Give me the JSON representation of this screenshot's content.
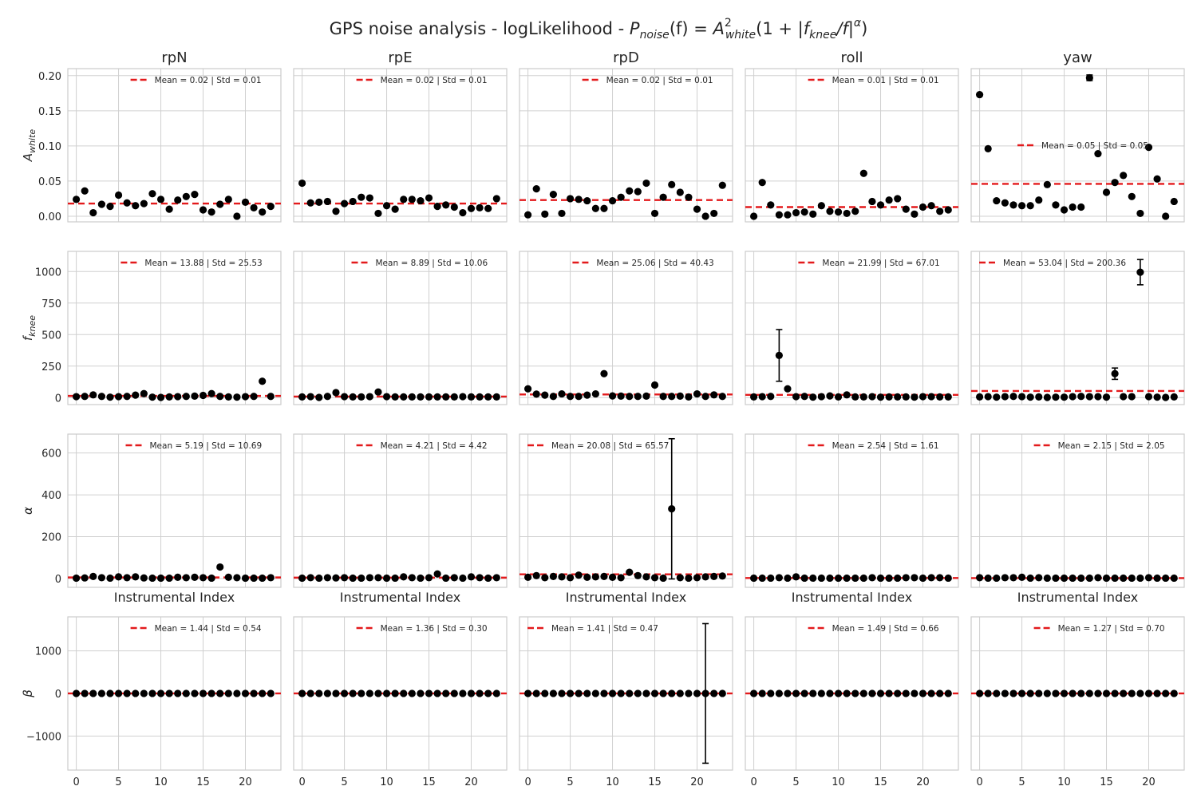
{
  "figure": {
    "title": "GPS noise analysis - logLikelihood - P_noise(f) = A²_white(1 + |f_knee/f|^α)",
    "title_parts": {
      "prefix": "GPS noise analysis - logLikelihood - ",
      "P": "P",
      "noise_sub": "noise",
      "f_arg": "(f) = ",
      "A": "A",
      "sq": "2",
      "white_sub": "white",
      "paren_open": "(1 + |",
      "f": "f",
      "knee_sub": "knee",
      "slash_f": "/f|",
      "alpha_sup": "α",
      "paren_close": ")"
    },
    "colors": {
      "points": "#000000",
      "mean_line": "#e31a1c",
      "grid": "#d0d0d0",
      "frame": "#cccccc",
      "text": "#262626"
    },
    "grid": true
  },
  "chart_data": {
    "type": "scatter",
    "columns": [
      "rpN",
      "rpE",
      "rpD",
      "roll",
      "yaw"
    ],
    "x": [
      0,
      1,
      2,
      3,
      4,
      5,
      6,
      7,
      8,
      9,
      10,
      11,
      12,
      13,
      14,
      15,
      16,
      17,
      18,
      19,
      20,
      21,
      22,
      23
    ],
    "xticks": [
      0,
      5,
      10,
      15,
      20
    ],
    "xlim": [
      -1,
      24.2
    ],
    "xlabel": "Instrumental Index",
    "rows": [
      {
        "ylabel": "A",
        "ylabel_sub": "white",
        "ylim": [
          -0.008,
          0.21
        ],
        "yticks": [
          "0.00",
          "0.05",
          "0.10",
          "0.15",
          "0.20"
        ],
        "ytick_values": [
          0,
          0.05,
          0.1,
          0.15,
          0.2
        ],
        "panels": [
          {
            "mean_label": "Mean = 0.02 | Std = 0.01",
            "mean": 0.018,
            "legend_pos": "upper-right",
            "values": [
              0.024,
              0.036,
              0.005,
              0.017,
              0.014,
              0.03,
              0.019,
              0.015,
              0.018,
              0.032,
              0.024,
              0.01,
              0.023,
              0.028,
              0.031,
              0.009,
              0.006,
              0.017,
              0.024,
              0.0,
              0.02,
              0.012,
              0.006,
              0.014
            ]
          },
          {
            "mean_label": "Mean = 0.02 | Std = 0.01",
            "mean": 0.018,
            "legend_pos": "upper-right",
            "values": [
              0.047,
              0.019,
              0.02,
              0.021,
              0.007,
              0.018,
              0.021,
              0.027,
              0.026,
              0.004,
              0.015,
              0.01,
              0.024,
              0.024,
              0.022,
              0.026,
              0.014,
              0.016,
              0.013,
              0.005,
              0.011,
              0.012,
              0.011,
              0.025
            ]
          },
          {
            "mean_label": "Mean = 0.02 | Std = 0.01",
            "mean": 0.023,
            "legend_pos": "upper-right",
            "values": [
              0.002,
              0.039,
              0.003,
              0.031,
              0.004,
              0.025,
              0.024,
              0.022,
              0.011,
              0.011,
              0.022,
              0.027,
              0.036,
              0.035,
              0.047,
              0.004,
              0.027,
              0.045,
              0.034,
              0.027,
              0.01,
              0.0,
              0.004,
              0.044
            ]
          },
          {
            "mean_label": "Mean = 0.01 | Std = 0.01",
            "mean": 0.013,
            "legend_pos": "upper-right",
            "values": [
              0.0,
              0.048,
              0.016,
              0.002,
              0.002,
              0.005,
              0.006,
              0.003,
              0.015,
              0.007,
              0.006,
              0.004,
              0.007,
              0.061,
              0.021,
              0.016,
              0.023,
              0.025,
              0.01,
              0.003,
              0.013,
              0.015,
              0.007,
              0.009
            ]
          },
          {
            "mean_label": "Mean = 0.05 | Std = 0.05",
            "mean": 0.046,
            "legend_pos": "center",
            "values": [
              0.173,
              0.096,
              0.022,
              0.019,
              0.016,
              0.015,
              0.015,
              0.023,
              0.045,
              0.016,
              0.009,
              0.013,
              0.013,
              0.197,
              0.089,
              0.034,
              0.048,
              0.058,
              0.028,
              0.004,
              0.098,
              0.053,
              0.0,
              0.021
            ],
            "errors": {
              "13": 0.004
            }
          }
        ]
      },
      {
        "ylabel": "f",
        "ylabel_sub": "knee",
        "ylim": [
          -55,
          1160
        ],
        "yticks": [
          "0",
          "250",
          "500",
          "750",
          "1000"
        ],
        "ytick_values": [
          0,
          250,
          500,
          750,
          1000
        ],
        "panels": [
          {
            "mean_label": "Mean = 13.88 | Std = 25.53",
            "mean": 13.88,
            "legend_pos": "upper-right",
            "values": [
              8,
              10,
              22,
              10,
              4,
              8,
              10,
              20,
              32,
              4,
              2,
              6,
              8,
              10,
              12,
              18,
              32,
              10,
              6,
              4,
              8,
              10,
              130,
              10
            ]
          },
          {
            "mean_label": "Mean = 8.89 | Std = 10.06",
            "mean": 8.89,
            "legend_pos": "upper-right",
            "values": [
              6,
              8,
              2,
              10,
              40,
              8,
              6,
              6,
              8,
              45,
              8,
              6,
              6,
              6,
              6,
              6,
              6,
              6,
              6,
              8,
              6,
              6,
              6,
              6
            ]
          },
          {
            "mean_label": "Mean = 25.06 | Std = 40.43",
            "mean": 25.06,
            "legend_pos": "upper-right",
            "values": [
              70,
              28,
              20,
              10,
              30,
              10,
              10,
              20,
              30,
              190,
              14,
              12,
              10,
              10,
              12,
              100,
              10,
              10,
              12,
              6,
              30,
              10,
              22,
              10
            ]
          },
          {
            "mean_label": "Mean = 21.99 | Std = 67.01",
            "mean": 21.99,
            "legend_pos": "upper-right",
            "values": [
              6,
              8,
              10,
              335,
              70,
              8,
              10,
              4,
              8,
              14,
              6,
              22,
              6,
              6,
              8,
              4,
              6,
              6,
              6,
              4,
              8,
              8,
              6,
              6
            ],
            "errors": {
              "3": 205
            }
          },
          {
            "mean_label": "Mean = 53.04 | Std = 200.36",
            "mean": 53.04,
            "legend_pos": "upper-left",
            "values": [
              6,
              8,
              4,
              8,
              10,
              8,
              4,
              6,
              2,
              4,
              4,
              8,
              10,
              8,
              8,
              4,
              190,
              8,
              8,
              995,
              8,
              4,
              2,
              6
            ],
            "errors": {
              "16": 45,
              "19": 100
            }
          }
        ]
      },
      {
        "ylabel": "α",
        "ylabel_sub": "",
        "ylim": [
          -42,
          690
        ],
        "yticks": [
          "0",
          "200",
          "400",
          "600"
        ],
        "ytick_values": [
          0,
          200,
          400,
          600
        ],
        "panels": [
          {
            "mean_label": "Mean = 5.19 | Std = 10.69",
            "mean": 5.19,
            "legend_pos": "upper-right",
            "values": [
              2,
              3,
              10,
              4,
              2,
              8,
              4,
              8,
              3,
              2,
              2,
              2,
              6,
              4,
              6,
              4,
              2,
              55,
              6,
              4,
              2,
              2,
              2,
              4
            ]
          },
          {
            "mean_label": "Mean = 4.21 | Std = 4.42",
            "mean": 4.21,
            "legend_pos": "upper-right",
            "values": [
              2,
              4,
              2,
              4,
              3,
              4,
              2,
              2,
              4,
              4,
              2,
              2,
              8,
              4,
              2,
              4,
              22,
              2,
              4,
              2,
              8,
              4,
              2,
              4
            ]
          },
          {
            "mean_label": "Mean = 20.08 | Std = 65.57",
            "mean": 20.08,
            "legend_pos": "upper-left",
            "values": [
              6,
              14,
              4,
              10,
              8,
              4,
              16,
              6,
              8,
              10,
              6,
              4,
              30,
              14,
              8,
              4,
              2,
              333,
              4,
              2,
              4,
              8,
              10,
              12
            ],
            "errors": {
              "17": 335
            }
          },
          {
            "mean_label": "Mean = 2.54 | Std = 1.61",
            "mean": 2.54,
            "legend_pos": "upper-right",
            "values": [
              2,
              2,
              2,
              4,
              2,
              8,
              2,
              2,
              2,
              2,
              2,
              2,
              2,
              2,
              4,
              2,
              2,
              2,
              4,
              4,
              2,
              4,
              4,
              2
            ]
          },
          {
            "mean_label": "Mean = 2.15 | Std = 2.05",
            "mean": 2.15,
            "legend_pos": "upper-right",
            "values": [
              4,
              2,
              2,
              4,
              4,
              6,
              2,
              4,
              2,
              2,
              2,
              2,
              2,
              2,
              4,
              2,
              2,
              2,
              2,
              2,
              4,
              2,
              2,
              2
            ]
          }
        ]
      },
      {
        "ylabel": "β",
        "ylabel_sub": "",
        "ylim": [
          -1800,
          1800
        ],
        "yticks": [
          "−1000",
          "0",
          "1000"
        ],
        "ytick_values": [
          -1000,
          0,
          1000
        ],
        "panels": [
          {
            "mean_label": "Mean = 1.44 | Std = 0.54",
            "mean": 1.44,
            "legend_pos": "upper-right",
            "values": [
              1,
              1,
              1,
              1,
              1,
              1,
              1,
              1,
              1,
              1,
              1,
              1,
              1,
              1,
              1,
              1,
              1,
              1,
              1,
              1,
              1,
              1,
              1,
              1
            ]
          },
          {
            "mean_label": "Mean = 1.36 | Std = 0.30",
            "mean": 1.36,
            "legend_pos": "upper-right",
            "values": [
              1,
              1,
              1,
              1,
              1,
              1,
              1,
              1,
              1,
              1,
              1,
              1,
              1,
              1,
              1,
              1,
              1,
              1,
              1,
              1,
              1,
              1,
              1,
              1
            ]
          },
          {
            "mean_label": "Mean = 1.41 | Std = 0.47",
            "mean": 1.41,
            "legend_pos": "upper-left",
            "values": [
              1,
              1,
              1,
              1,
              1,
              1,
              1,
              1,
              1,
              1,
              1,
              1,
              1,
              1,
              1,
              1,
              1,
              1,
              1,
              1,
              1,
              1,
              1,
              1
            ],
            "errors": {
              "21": 1640
            }
          },
          {
            "mean_label": "Mean = 1.49 | Std = 0.66",
            "mean": 1.49,
            "legend_pos": "upper-right",
            "values": [
              1,
              1,
              1,
              1,
              1,
              1,
              1,
              1,
              1,
              1,
              1,
              1,
              1,
              1,
              1,
              1,
              1,
              1,
              1,
              1,
              1,
              1,
              1,
              1
            ]
          },
          {
            "mean_label": "Mean = 1.27 | Std = 0.70",
            "mean": 1.27,
            "legend_pos": "upper-right",
            "values": [
              1,
              1,
              1,
              1,
              1,
              1,
              1,
              1,
              1,
              1,
              1,
              1,
              1,
              1,
              1,
              1,
              1,
              1,
              1,
              1,
              1,
              1,
              1,
              1
            ]
          }
        ]
      }
    ]
  }
}
